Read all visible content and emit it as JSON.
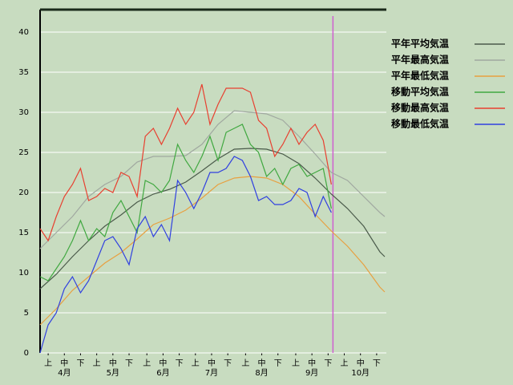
{
  "chart_data": {
    "type": "line",
    "background": "#c8dcc0",
    "grid": true,
    "legend": "right",
    "xlim": [
      0,
      214
    ],
    "ylim": [
      0,
      42.8
    ],
    "yticks": [
      0,
      5,
      10,
      15,
      20,
      25,
      30,
      35,
      40
    ],
    "xticks": [
      {
        "value": 5,
        "label": "上"
      },
      {
        "value": 15,
        "label": "中"
      },
      {
        "value": 25,
        "label": "下"
      },
      {
        "value": 35,
        "label": "上"
      },
      {
        "value": 45,
        "label": "中"
      },
      {
        "value": 55,
        "label": "下"
      },
      {
        "value": 66,
        "label": "上"
      },
      {
        "value": 76,
        "label": "中"
      },
      {
        "value": 86,
        "label": "下"
      },
      {
        "value": 96,
        "label": "上"
      },
      {
        "value": 106,
        "label": "中"
      },
      {
        "value": 116,
        "label": "下"
      },
      {
        "value": 127,
        "label": "上"
      },
      {
        "value": 137,
        "label": "中"
      },
      {
        "value": 147,
        "label": "下"
      },
      {
        "value": 158,
        "label": "上"
      },
      {
        "value": 168,
        "label": "中"
      },
      {
        "value": 178,
        "label": "下"
      },
      {
        "value": 188,
        "label": "上"
      },
      {
        "value": 198,
        "label": "中"
      },
      {
        "value": 208,
        "label": "下"
      }
    ],
    "month_ticks": [
      {
        "value": 15,
        "label": "4月"
      },
      {
        "value": 45,
        "label": "5月"
      },
      {
        "value": 76,
        "label": "6月"
      },
      {
        "value": 106,
        "label": "7月"
      },
      {
        "value": 137,
        "label": "8月"
      },
      {
        "value": 168,
        "label": "9月"
      },
      {
        "value": 198,
        "label": "10月"
      }
    ],
    "marker_x": 181,
    "marker_color": "#d060d0",
    "series": [
      {
        "name": "平年平均気温",
        "color": "#4a5a4a",
        "x": [
          0,
          10,
          20,
          30,
          40,
          50,
          60,
          70,
          80,
          90,
          100,
          110,
          120,
          130,
          140,
          150,
          160,
          170,
          180,
          190,
          200,
          210,
          213
        ],
        "values": [
          8,
          9.8,
          12,
          14,
          15.8,
          17.2,
          18.8,
          19.8,
          20.4,
          21.3,
          22.7,
          24.2,
          25.4,
          25.5,
          25.4,
          24.8,
          23.6,
          21.8,
          19.8,
          18,
          15.8,
          12.6,
          12
        ]
      },
      {
        "name": "平年最高気温",
        "color": "#a0a8a0",
        "x": [
          0,
          10,
          20,
          30,
          40,
          50,
          60,
          70,
          80,
          90,
          100,
          110,
          120,
          130,
          140,
          150,
          160,
          170,
          180,
          190,
          200,
          210,
          213
        ],
        "values": [
          13,
          15,
          17,
          19.5,
          21,
          22,
          23.8,
          24.5,
          24.5,
          24.6,
          26,
          28.5,
          30.2,
          30,
          29.8,
          29,
          27,
          24.8,
          22.5,
          21.5,
          19.5,
          17.5,
          17
        ]
      },
      {
        "name": "平年最低気温",
        "color": "#e8a040",
        "x": [
          0,
          10,
          20,
          30,
          40,
          50,
          60,
          70,
          80,
          90,
          100,
          110,
          120,
          130,
          140,
          150,
          160,
          170,
          180,
          190,
          200,
          210,
          213
        ],
        "values": [
          3.5,
          5.5,
          7.8,
          9.5,
          11.2,
          12.5,
          14.2,
          16,
          16.8,
          17.8,
          19.3,
          21,
          21.8,
          22,
          21.8,
          21,
          19.5,
          17.3,
          15.2,
          13.3,
          11,
          8.2,
          7.6
        ]
      },
      {
        "name": "移動平均気温",
        "color": "#40a840",
        "x": [
          0,
          5,
          10,
          15,
          20,
          25,
          30,
          35,
          40,
          45,
          50,
          55,
          60,
          65,
          70,
          75,
          80,
          85,
          90,
          95,
          100,
          105,
          110,
          115,
          120,
          125,
          130,
          135,
          140,
          145,
          150,
          155,
          160,
          165,
          170,
          175,
          180
        ],
        "values": [
          9.5,
          9,
          10.5,
          12,
          14,
          16.5,
          14,
          15.5,
          14.5,
          17.5,
          19,
          17,
          15,
          21.5,
          21,
          20,
          21.5,
          26,
          24,
          22.5,
          24.5,
          27,
          24,
          27.5,
          28,
          28.5,
          26,
          25,
          22,
          23,
          21,
          23,
          23.5,
          22,
          22.5,
          23,
          18
        ]
      },
      {
        "name": "移動最高気温",
        "color": "#e84030",
        "x": [
          0,
          5,
          10,
          15,
          20,
          25,
          30,
          35,
          40,
          45,
          50,
          55,
          60,
          65,
          70,
          75,
          80,
          85,
          90,
          95,
          100,
          105,
          110,
          115,
          120,
          125,
          130,
          135,
          140,
          145,
          150,
          155,
          160,
          165,
          170,
          175,
          180
        ],
        "values": [
          15.5,
          14,
          17,
          19.5,
          21,
          23,
          19,
          19.5,
          20.5,
          20,
          22.5,
          22,
          19.5,
          27,
          28,
          26,
          28,
          30.5,
          28.5,
          30,
          33.5,
          28.5,
          31,
          33,
          33,
          33,
          32.5,
          29,
          28,
          24.5,
          26,
          28,
          26,
          27.5,
          28.5,
          26.5,
          21
        ]
      },
      {
        "name": "移動最低気温",
        "color": "#3040e0",
        "x": [
          0,
          5,
          10,
          15,
          20,
          25,
          30,
          35,
          40,
          45,
          50,
          55,
          60,
          65,
          70,
          75,
          80,
          85,
          90,
          95,
          100,
          105,
          110,
          115,
          120,
          125,
          130,
          135,
          140,
          145,
          150,
          155,
          160,
          165,
          170,
          175,
          180
        ],
        "values": [
          0,
          3.5,
          5,
          8,
          9.5,
          7.5,
          9,
          11.5,
          14,
          14.5,
          13,
          11,
          15.5,
          17,
          14.5,
          16,
          14,
          21.5,
          20,
          18,
          20,
          22.5,
          22.5,
          23,
          24.5,
          24,
          22,
          19,
          19.5,
          18.5,
          18.5,
          19,
          20.5,
          20,
          17,
          19.5,
          17.5
        ]
      }
    ]
  }
}
